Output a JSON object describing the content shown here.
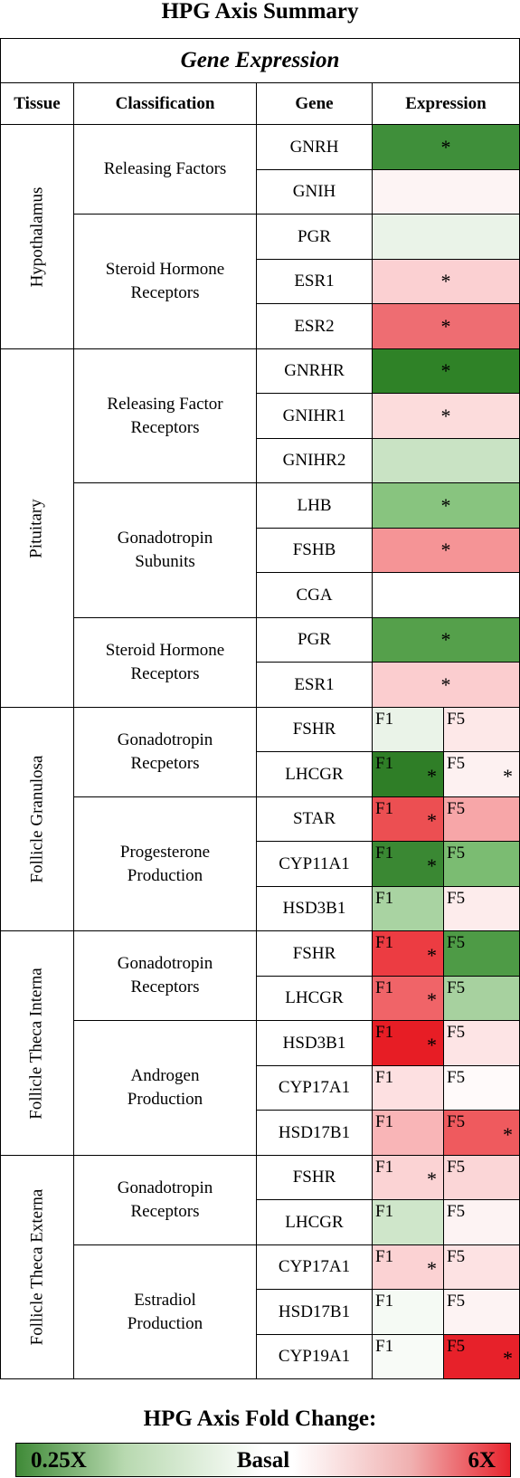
{
  "title": "HPG Axis Summary",
  "header": {
    "group": "Gene Expression",
    "columns": [
      "Tissue",
      "Classification",
      "Gene",
      "Expression"
    ]
  },
  "star_symbol": "*",
  "tissues": [
    {
      "name": "Hypothalamus",
      "first_row": 0,
      "rows": 5
    },
    {
      "name": "Pituitary",
      "first_row": 5,
      "rows": 8
    },
    {
      "name": "Follicle Granulosa",
      "first_row": 13,
      "rows": 5
    },
    {
      "name": "Follicle Theca Interna",
      "first_row": 18,
      "rows": 5
    },
    {
      "name": "Follicle Theca Externa",
      "first_row": 23,
      "rows": 5
    }
  ],
  "classifications": [
    {
      "lines": [
        "Releasing Factors"
      ],
      "first_row": 0,
      "rows": 2
    },
    {
      "lines": [
        "Steroid Hormone",
        "Receptors"
      ],
      "first_row": 2,
      "rows": 3
    },
    {
      "lines": [
        "Releasing Factor",
        "Receptors"
      ],
      "first_row": 5,
      "rows": 3
    },
    {
      "lines": [
        "Gonadotropin",
        "Subunits"
      ],
      "first_row": 8,
      "rows": 3
    },
    {
      "lines": [
        "Steroid Hormone",
        "Receptors"
      ],
      "first_row": 11,
      "rows": 2
    },
    {
      "lines": [
        "Gonadotropin",
        "Recpetors"
      ],
      "first_row": 13,
      "rows": 2
    },
    {
      "lines": [
        "Progesterone",
        "Production"
      ],
      "first_row": 15,
      "rows": 3
    },
    {
      "lines": [
        "Gonadotropin",
        "Receptors"
      ],
      "first_row": 18,
      "rows": 2
    },
    {
      "lines": [
        "Androgen",
        "Production"
      ],
      "first_row": 20,
      "rows": 3
    },
    {
      "lines": [
        "Gonadotropin",
        "Receptors"
      ],
      "first_row": 23,
      "rows": 2
    },
    {
      "lines": [
        "Estradiol",
        "Production"
      ],
      "first_row": 25,
      "rows": 3
    }
  ],
  "rows": [
    {
      "gene": "GNRH",
      "color": "#3f8f3a",
      "star": true
    },
    {
      "gene": "GNIH",
      "color": "#fdf4f4",
      "star": false
    },
    {
      "gene": "PGR",
      "color": "#eaf3e8",
      "star": false
    },
    {
      "gene": "ESR1",
      "color": "#fbd0d2",
      "star": true
    },
    {
      "gene": "ESR2",
      "color": "#ee6d72",
      "star": true
    },
    {
      "gene": "GNRHR",
      "color": "#2f8227",
      "star": true
    },
    {
      "gene": "GNIHR1",
      "color": "#fcdcdc",
      "star": true
    },
    {
      "gene": "GNIHR2",
      "color": "#c9e3c4",
      "star": false
    },
    {
      "gene": "LHB",
      "color": "#88c47f",
      "star": true
    },
    {
      "gene": "FSHB",
      "color": "#f59496",
      "star": true
    },
    {
      "gene": "CGA",
      "color": "#ffffff",
      "star": false
    },
    {
      "gene": "PGR",
      "color": "#55a04b",
      "star": true
    },
    {
      "gene": "ESR1",
      "color": "#fbcdcf",
      "star": true
    },
    {
      "gene": "FSHR",
      "split": [
        {
          "label": "F1",
          "color": "#eaf3e8",
          "star": false
        },
        {
          "label": "F5",
          "color": "#fde8e8",
          "star": false
        }
      ]
    },
    {
      "gene": "LHCGR",
      "split": [
        {
          "label": "F1",
          "color": "#2f7e27",
          "star": true
        },
        {
          "label": "F5",
          "color": "#fdf1f1",
          "star": true
        }
      ]
    },
    {
      "gene": "STAR",
      "split": [
        {
          "label": "F1",
          "color": "#ec4f52",
          "star": true
        },
        {
          "label": "F5",
          "color": "#f7a6a8",
          "star": false
        }
      ]
    },
    {
      "gene": "CYP11A1",
      "split": [
        {
          "label": "F1",
          "color": "#3a8833",
          "star": true
        },
        {
          "label": "F5",
          "color": "#7bbc72",
          "star": false
        }
      ]
    },
    {
      "gene": "HSD3B1",
      "split": [
        {
          "label": "F1",
          "color": "#a9d3a2",
          "star": false
        },
        {
          "label": "F5",
          "color": "#fdecec",
          "star": false
        }
      ]
    },
    {
      "gene": "FSHR",
      "split": [
        {
          "label": "F1",
          "color": "#ec3c42",
          "star": true
        },
        {
          "label": "F5",
          "color": "#4e9b46",
          "star": false
        }
      ]
    },
    {
      "gene": "LHCGR",
      "split": [
        {
          "label": "F1",
          "color": "#f06468",
          "star": true
        },
        {
          "label": "F5",
          "color": "#a7d19f",
          "star": false
        }
      ]
    },
    {
      "gene": "HSD3B1",
      "split": [
        {
          "label": "F1",
          "color": "#e71d25",
          "star": true
        },
        {
          "label": "F5",
          "color": "#fde4e5",
          "star": false
        }
      ]
    },
    {
      "gene": "CYP17A1",
      "split": [
        {
          "label": "F1",
          "color": "#fde0e1",
          "star": false
        },
        {
          "label": "F5",
          "color": "#fffafa",
          "star": false
        }
      ]
    },
    {
      "gene": "HSD17B1",
      "split": [
        {
          "label": "F1",
          "color": "#f9b5b7",
          "star": false
        },
        {
          "label": "F5",
          "color": "#ef5a5e",
          "star": true
        }
      ]
    },
    {
      "gene": "FSHR",
      "split": [
        {
          "label": "F1",
          "color": "#fbd3d4",
          "star": true
        },
        {
          "label": "F5",
          "color": "#fbd6d7",
          "star": false
        }
      ]
    },
    {
      "gene": "LHCGR",
      "split": [
        {
          "label": "F1",
          "color": "#cfe6ca",
          "star": false
        },
        {
          "label": "F5",
          "color": "#fdf3f3",
          "star": false
        }
      ]
    },
    {
      "gene": "CYP17A1",
      "split": [
        {
          "label": "F1",
          "color": "#fbd2d3",
          "star": true
        },
        {
          "label": "F5",
          "color": "#fde2e3",
          "star": false
        }
      ]
    },
    {
      "gene": "HSD17B1",
      "split": [
        {
          "label": "F1",
          "color": "#f5faf4",
          "star": false
        },
        {
          "label": "F5",
          "color": "#fdf3f3",
          "star": false
        }
      ]
    },
    {
      "gene": "CYP19A1",
      "split": [
        {
          "label": "F1",
          "color": "#f8fbf7",
          "star": false
        },
        {
          "label": "F5",
          "color": "#e7212a",
          "star": true
        }
      ]
    }
  ],
  "legend": {
    "title": "HPG Axis Fold Change:",
    "low": "0.25X",
    "mid": "Basal",
    "high": "6X",
    "low_color": "#3f8a37",
    "high_color": "#e8232d"
  }
}
